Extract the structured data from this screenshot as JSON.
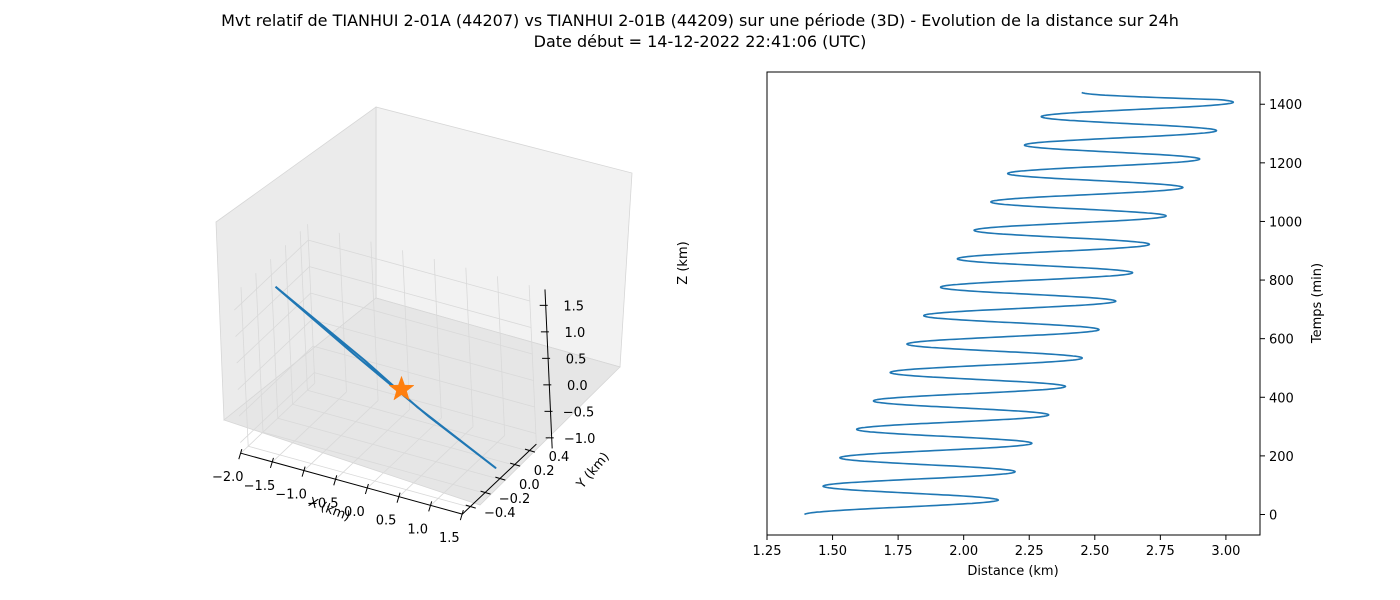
{
  "figure": {
    "title_line1": "Mvt relatif de TIANHUI 2-01A (44207) vs TIANHUI 2-01B (44209) sur une période (3D) - Evolution de la distance sur 24h",
    "title_line2": "Date début = 14-12-2022 22:41:06 (UTC)"
  },
  "colors": {
    "series": "#1f77b4",
    "marker": "#ff7f0e",
    "pane": "#f2f2f2",
    "grid": "#d9d9d9"
  },
  "chart_data": [
    {
      "type": "line",
      "projection": "3d",
      "xlabel": "X (km)",
      "ylabel": "Y (km)",
      "zlabel": "Z (km)",
      "xticks": [
        "−2.0",
        "−1.5",
        "−1.0",
        "−0.5",
        "0.0",
        "0.5",
        "1.0",
        "1.5"
      ],
      "yticks": [
        "−0.4",
        "−0.2",
        "0.0",
        "0.2",
        "0.4"
      ],
      "zticks": [
        "−1.0",
        "−0.5",
        "0.0",
        "0.5",
        "1.0",
        "1.5"
      ],
      "xlim": [
        -2.0,
        1.5
      ],
      "ylim": [
        -0.5,
        0.5
      ],
      "zlim": [
        -1.2,
        1.8
      ],
      "grid": true,
      "series": [
        {
          "marker": "line",
          "points": [
            {
              "x": -1.72,
              "y": -0.18,
              "z": 1.61
            },
            {
              "x": -0.55,
              "y": -0.02,
              "z": 0.4
            },
            {
              "x": 0.15,
              "y": 0.08,
              "z": -0.4
            },
            {
              "x": 1.2,
              "y": 0.2,
              "z": -1.35
            },
            {
              "x": 0.3,
              "y": 0.1,
              "z": -0.55
            },
            {
              "x": -0.7,
              "y": -0.04,
              "z": 0.5
            },
            {
              "x": -1.72,
              "y": -0.18,
              "z": 1.61
            }
          ]
        },
        {
          "marker": "star",
          "points": [
            {
              "x": 0.0,
              "y": 0.0,
              "z": 0.0
            }
          ]
        }
      ]
    },
    {
      "type": "line",
      "xlabel": "Distance (km)",
      "ylabel": "Temps (min)",
      "xticks": [
        "1.25",
        "1.50",
        "1.75",
        "2.00",
        "2.25",
        "2.50",
        "2.75",
        "3.00"
      ],
      "yticks": [
        "0",
        "200",
        "400",
        "600",
        "800",
        "1000",
        "1200",
        "1400"
      ],
      "xlim": [
        1.25,
        3.13
      ],
      "ylim": [
        -70,
        1510
      ],
      "yaxis_position": "right",
      "grid": false,
      "series": [
        {
          "model": "distance oscillating about a linearly increasing mean",
          "x_start": 1.33,
          "x_min_start": 1.4,
          "x_max_start": 2.1,
          "amp_start": 0.35,
          "amp_end": 0.35,
          "mean_start": 1.75,
          "mean_end": 2.7,
          "period_min": 97,
          "t_end": 1440,
          "x_end": 2.45,
          "x_min_end": 2.35,
          "x_max_end": 3.04
        }
      ]
    }
  ]
}
